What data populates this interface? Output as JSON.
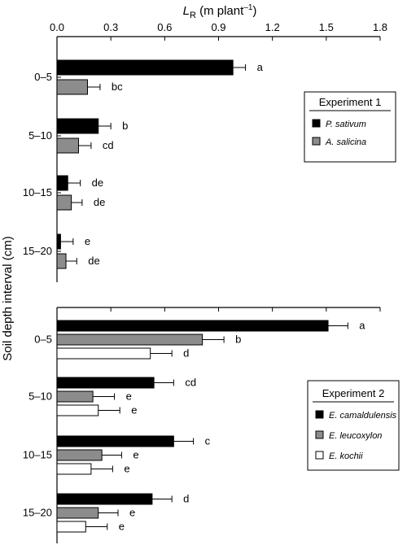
{
  "figure": {
    "x_axis_title": "L",
    "x_axis_title_sub": "R",
    "x_axis_units": " (m plant",
    "x_axis_units_sup": "–1",
    "x_axis_units_close": ")",
    "y_axis_title": "Soil depth interval (cm)"
  },
  "colors": {
    "black": "#000000",
    "grey": "#8c8c8c",
    "white": "#ffffff"
  },
  "chart_data": [
    {
      "type": "bar",
      "orientation": "horizontal",
      "panel": "Experiment 1",
      "xlim": [
        0,
        1.8
      ],
      "xticks": [
        "0.0",
        "0.3",
        "0.6",
        "0.9",
        "1.2",
        "1.5",
        "1.8"
      ],
      "categories": [
        "0–5",
        "5–10",
        "10–15",
        "15–20"
      ],
      "legend_title": "Experiment 1",
      "legend_position": "right",
      "series": [
        {
          "name": "P. sativum",
          "color": "black",
          "values": [
            0.98,
            0.23,
            0.06,
            0.02
          ],
          "errors": [
            0.07,
            0.07,
            0.07,
            0.07
          ],
          "labels": [
            "a",
            "b",
            "de",
            "e"
          ]
        },
        {
          "name": "A. salicina",
          "color": "grey",
          "values": [
            0.17,
            0.12,
            0.08,
            0.05
          ],
          "errors": [
            0.07,
            0.07,
            0.06,
            0.06
          ],
          "labels": [
            "bc",
            "cd",
            "de",
            "de"
          ]
        }
      ]
    },
    {
      "type": "bar",
      "orientation": "horizontal",
      "panel": "Experiment 2",
      "xlim": [
        0,
        1.8
      ],
      "categories": [
        "0–5",
        "5–10",
        "10–15",
        "15–20"
      ],
      "legend_title": "Experiment 2",
      "legend_position": "right",
      "series": [
        {
          "name": "E. camaldulensis",
          "color": "black",
          "values": [
            1.51,
            0.54,
            0.65,
            0.53
          ],
          "errors": [
            0.11,
            0.11,
            0.11,
            0.11
          ],
          "labels": [
            "a",
            "cd",
            "c",
            "d"
          ]
        },
        {
          "name": "E. leucoxylon",
          "color": "grey",
          "values": [
            0.81,
            0.2,
            0.25,
            0.23
          ],
          "errors": [
            0.12,
            0.12,
            0.11,
            0.11
          ],
          "labels": [
            "b",
            "e",
            "e",
            "e"
          ]
        },
        {
          "name": "E. kochii",
          "color": "white",
          "values": [
            0.52,
            0.23,
            0.19,
            0.16
          ],
          "errors": [
            0.12,
            0.12,
            0.12,
            0.12
          ],
          "labels": [
            "d",
            "e",
            "e",
            "e"
          ]
        }
      ]
    }
  ]
}
